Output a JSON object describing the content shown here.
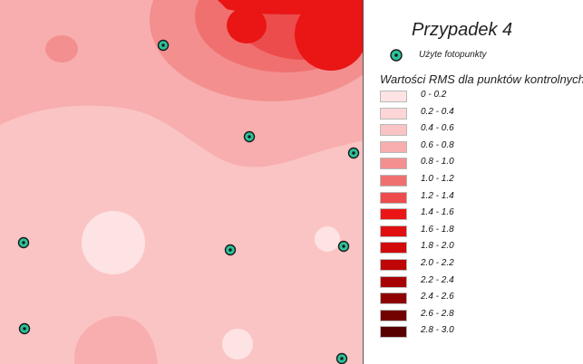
{
  "legend": {
    "title": "Przypadek 4",
    "used_points_label": "Użyte fotopunkty",
    "rms_title": "Wartości RMS dla punktów kontrolnych [m]",
    "classes": [
      {
        "label": "0 - 0.2",
        "color": "#fde3e3"
      },
      {
        "label": "0.2 - 0.4",
        "color": "#fcd6d6"
      },
      {
        "label": "0.4 - 0.6",
        "color": "#fbc4c4"
      },
      {
        "label": "0.6 - 0.8",
        "color": "#f8aeae"
      },
      {
        "label": "0.8 - 1.0",
        "color": "#f48f8f"
      },
      {
        "label": "1.0 - 1.2",
        "color": "#f07070"
      },
      {
        "label": "1.2 - 1.4",
        "color": "#ec4c4c"
      },
      {
        "label": "1.4 - 1.6",
        "color": "#ea1515"
      },
      {
        "label": "1.6 - 1.8",
        "color": "#e01010"
      },
      {
        "label": "1.8 - 2.0",
        "color": "#d20a0a"
      },
      {
        "label": "2.0 - 2.2",
        "color": "#bf0606"
      },
      {
        "label": "2.2 - 2.4",
        "color": "#a80303"
      },
      {
        "label": "2.4 - 2.6",
        "color": "#8e0202"
      },
      {
        "label": "2.6 - 2.8",
        "color": "#730101"
      },
      {
        "label": "2.8 - 3.0",
        "color": "#580000"
      }
    ]
  },
  "map": {
    "marker_fill": "#2bc29a",
    "marker_icon": "control-point-marker"
  }
}
